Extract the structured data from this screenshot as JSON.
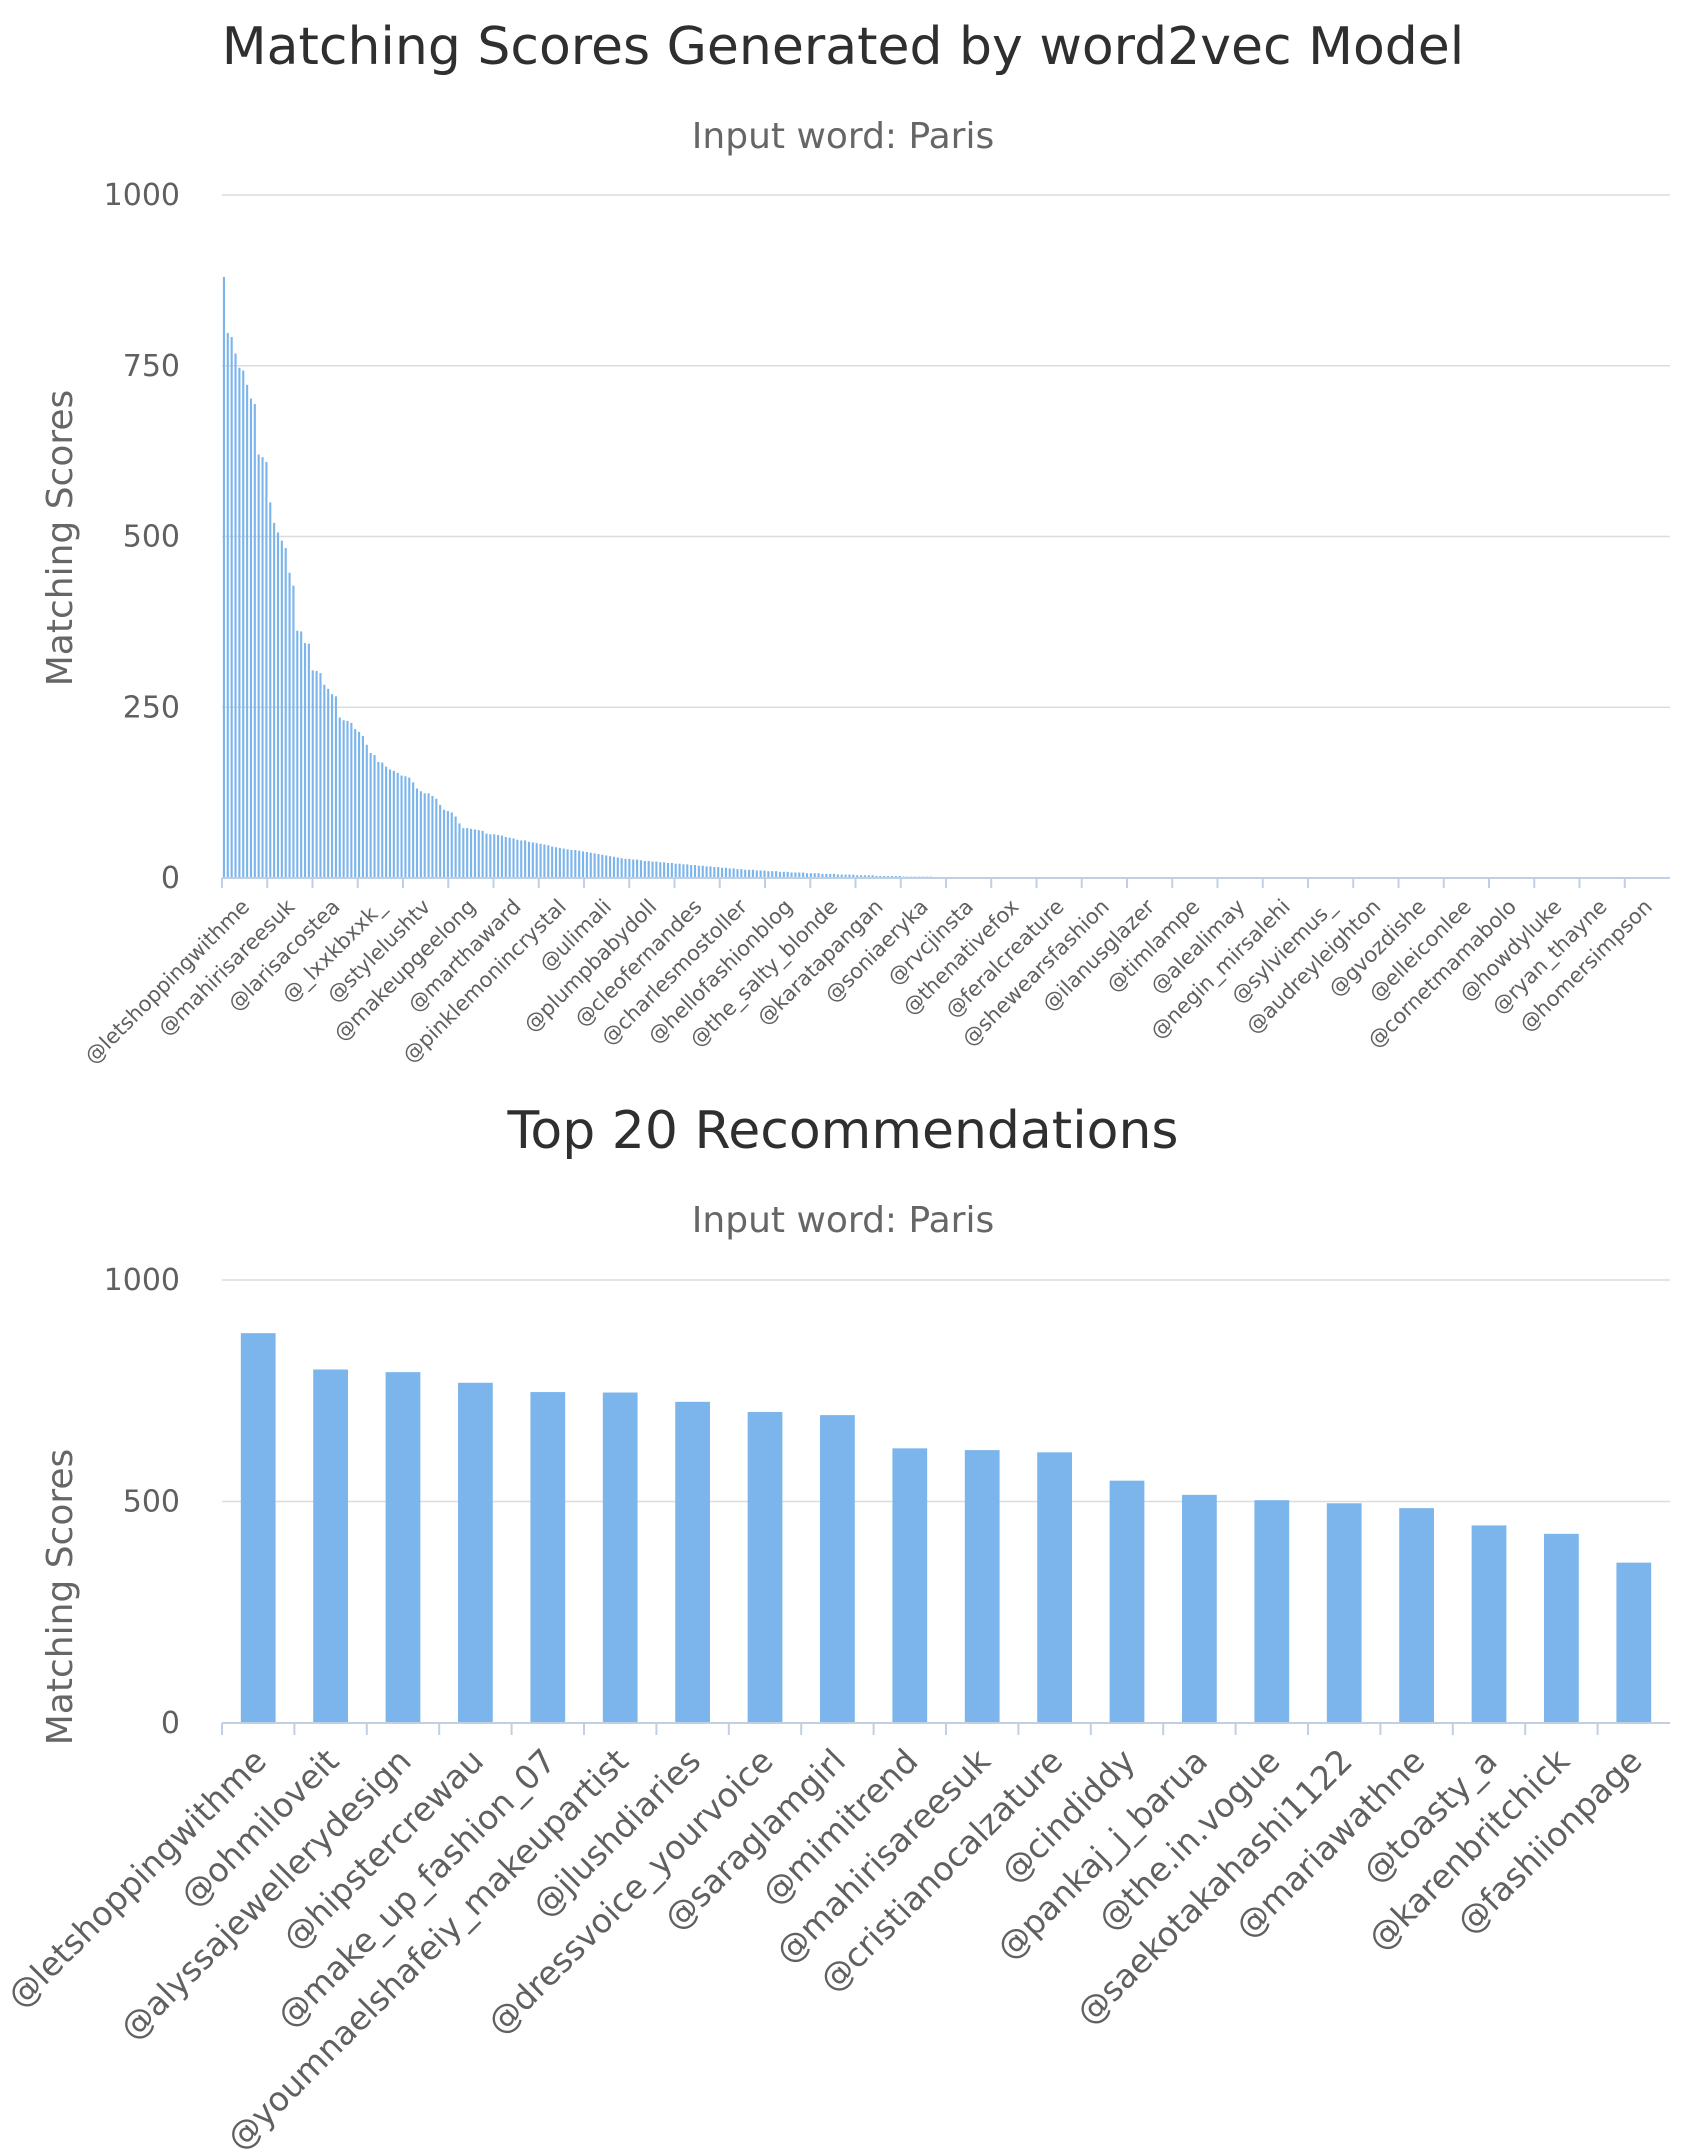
{
  "chart_data": [
    {
      "type": "bar",
      "title": "Matching Scores Generated by word2vec Model",
      "subtitle": "Input word: Paris",
      "ylabel": "Matching Scores",
      "xlabel": "",
      "ylim": [
        0,
        1000
      ],
      "yticks": [
        0,
        250,
        500,
        750,
        1000
      ],
      "grid": true,
      "legend": "none",
      "color": "#7cb5ec",
      "category_labels": [
        "@letshoppingwithme",
        "@mahirisareesuk",
        "@larisacostea",
        "@_lxxkbxxk_",
        "@stylelushtv",
        "@makeupgeelong",
        "@marthaward",
        "@pinklemonincrystal",
        "@ulimali",
        "@plumpbabydoll",
        "@cleofernandes",
        "@charlesmostoller",
        "@hellofashionblog",
        "@the_salty_blonde",
        "@karatapangan",
        "@soniaeryka",
        "@rvcjinsta",
        "@thenativefox",
        "@feralcreature",
        "@shewearsfashion",
        "@ilanusglazer",
        "@timlampe",
        "@alealimay",
        "@negin_mirsalehi",
        "@sylviemus_",
        "@audreyleighton",
        "@gvozdishe",
        "@elleiconlee",
        "@cornetmamabolo",
        "@howdyluke",
        "@ryan_thayne",
        "@homersimpson"
      ],
      "values": [
        880,
        798,
        792,
        768,
        747,
        743,
        722,
        702,
        694,
        620,
        616,
        609,
        550,
        520,
        506,
        494,
        483,
        447,
        428,
        362,
        361,
        344,
        343,
        304,
        303,
        300,
        283,
        277,
        269,
        266,
        235,
        231,
        230,
        227,
        218,
        214,
        208,
        195,
        183,
        180,
        170,
        169,
        163,
        159,
        157,
        154,
        150,
        149,
        147,
        140,
        131,
        127,
        124,
        124,
        120,
        116,
        107,
        100,
        98,
        96,
        90,
        80,
        73,
        73,
        72,
        71,
        70,
        69,
        65,
        64,
        64,
        63,
        62,
        60,
        59,
        58,
        56,
        55,
        55,
        53,
        52,
        51,
        50,
        49,
        48,
        46,
        45,
        44,
        43,
        42,
        41,
        41,
        40,
        39,
        38,
        37,
        36,
        35,
        34,
        33,
        32,
        31,
        30,
        29,
        28,
        28,
        27,
        27,
        26,
        25,
        25,
        24,
        24,
        23,
        23,
        22,
        22,
        21,
        21,
        20,
        20,
        19,
        19,
        18,
        18,
        17,
        17,
        16,
        16,
        15,
        15,
        14,
        14,
        13,
        13,
        12,
        12,
        12,
        11,
        11,
        11,
        10,
        10,
        10,
        9,
        9,
        9,
        8,
        8,
        8,
        8,
        7,
        7,
        7,
        7,
        6,
        6,
        6,
        6,
        5,
        5,
        5,
        5,
        5,
        4,
        4,
        4,
        4,
        4,
        3,
        3,
        3,
        3,
        3,
        3,
        3,
        2,
        2,
        2,
        2,
        2,
        2,
        2,
        2,
        1,
        1,
        1,
        1,
        1,
        1,
        1,
        1,
        1,
        1,
        1,
        1,
        1,
        1,
        1,
        1,
        1,
        1,
        1,
        1,
        1,
        1,
        1,
        1,
        1,
        1,
        1,
        1,
        1,
        1,
        1,
        1,
        1,
        1,
        1,
        1,
        1,
        1,
        1,
        1,
        1,
        1,
        1,
        1,
        1,
        1,
        1,
        1,
        1,
        1,
        1,
        1,
        1,
        1,
        1,
        1,
        1,
        1,
        1,
        1,
        1,
        1,
        1,
        1,
        1,
        1,
        1,
        1,
        1,
        1,
        1,
        1,
        1,
        1,
        1,
        1,
        1,
        1,
        1,
        1,
        1,
        1,
        1,
        1,
        1,
        1,
        1,
        1,
        1,
        1,
        1,
        1,
        1,
        1,
        1,
        1,
        1,
        1,
        1,
        1,
        1,
        1,
        1,
        1,
        1,
        1,
        1,
        1,
        1,
        1,
        1,
        1,
        1,
        1,
        1,
        1,
        1,
        1,
        1,
        1,
        1,
        1,
        1,
        1,
        1,
        1,
        1,
        1,
        1,
        1,
        1,
        1,
        1,
        1,
        1,
        1,
        1,
        1,
        1,
        1,
        1,
        1,
        1,
        1,
        1,
        1,
        1,
        1,
        1,
        1,
        1,
        1,
        1,
        1,
        1,
        1,
        1,
        1,
        1,
        1,
        1,
        1,
        1,
        1,
        1,
        1,
        1,
        1,
        1,
        1,
        1,
        1,
        1,
        1,
        1,
        1,
        1,
        1,
        1,
        1,
        1,
        1,
        1,
        1,
        1,
        1,
        1,
        1,
        1,
        1,
        1
      ]
    },
    {
      "type": "bar",
      "title": "Top 20 Recommendations",
      "subtitle": "Input word: Paris",
      "ylabel": "Matching Scores",
      "xlabel": "",
      "ylim": [
        0,
        1000
      ],
      "yticks": [
        0,
        500,
        1000
      ],
      "grid": true,
      "legend": "none",
      "color": "#7cb5ec",
      "categories": [
        "@letshoppingwithme",
        "@ohmiloveit",
        "@alyssajewellerydesign",
        "@hipstercrewau",
        "@make_up_fashion_07",
        "@youmnaelshafeiy_makeupartist",
        "@jlushdiaries",
        "@dressvoice_yourvoice",
        "@saraglamgirl",
        "@mimitrend",
        "@mahirisareesuk",
        "@cristianocalzature",
        "@cindiddy",
        "@pankaj_j_barua",
        "@the.in.vogue",
        "@saekotakahashi1122",
        "@mariawathne",
        "@toasty_a",
        "@karenbritchick",
        "@fashiionpage"
      ],
      "values": [
        880,
        798,
        792,
        768,
        747,
        746,
        725,
        702,
        695,
        620,
        616,
        611,
        547,
        515,
        503,
        496,
        485,
        446,
        427,
        362
      ]
    }
  ]
}
